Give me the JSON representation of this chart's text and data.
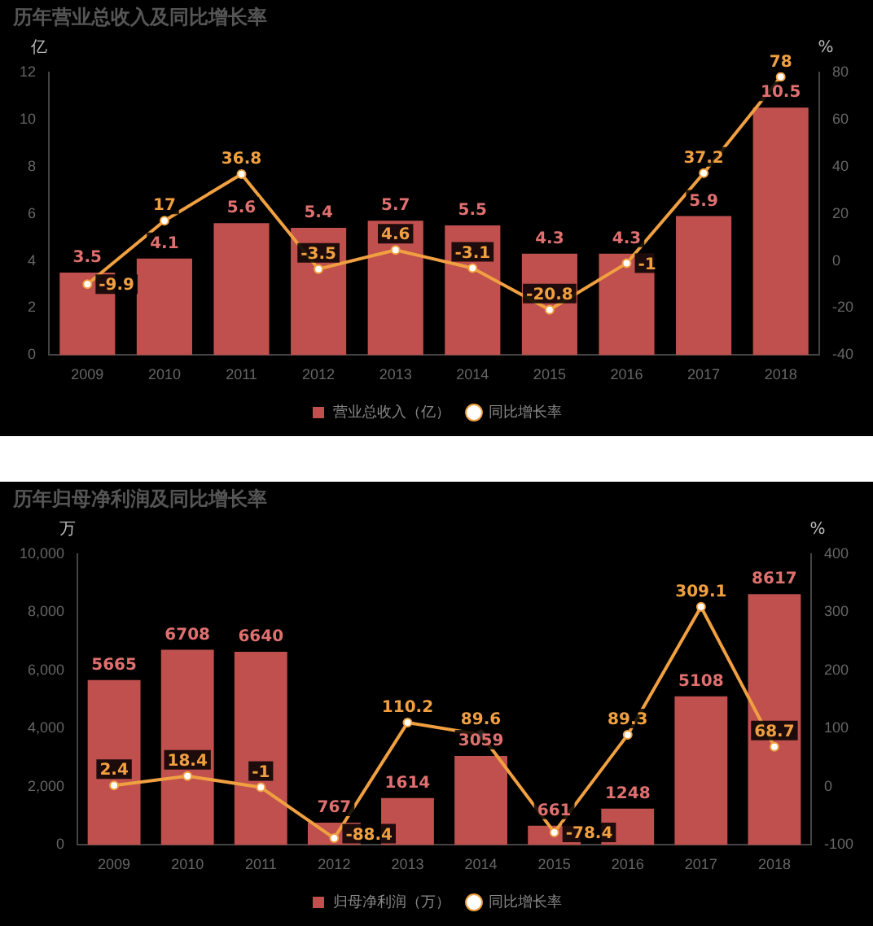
{
  "chart_data": [
    {
      "type": "bar",
      "title": "历年营业总收入及同比增长率",
      "ylabel": "亿",
      "y2label": "%",
      "categories": [
        "2009",
        "2010",
        "2011",
        "2012",
        "2013",
        "2014",
        "2015",
        "2016",
        "2017",
        "2018"
      ],
      "series": [
        {
          "name": "营业总收入（亿）",
          "color": "#c0504d",
          "values": [
            3.5,
            4.1,
            5.6,
            5.4,
            5.7,
            5.5,
            4.3,
            4.3,
            5.9,
            10.5
          ]
        },
        {
          "name": "同比增长率",
          "type": "line",
          "axis": "y2",
          "color": "#f0a040",
          "values": [
            -9.9,
            17,
            36.8,
            -3.5,
            4.6,
            -3.1,
            -20.8,
            -1,
            37.2,
            78
          ]
        }
      ],
      "ylim": [
        0,
        12
      ],
      "yticks": [
        0,
        2,
        4,
        6,
        8,
        10,
        12
      ],
      "y2lim": [
        -40,
        80
      ],
      "y2ticks": [
        -40,
        -20,
        0,
        20,
        40,
        60,
        80
      ],
      "legend": "bottom",
      "data_labels": true,
      "marker": "circle",
      "grid": false
    },
    {
      "type": "bar",
      "title": "历年归母净利润及同比增长率",
      "ylabel": "万",
      "y2label": "%",
      "categories": [
        "2009",
        "2010",
        "2011",
        "2012",
        "2013",
        "2014",
        "2015",
        "2016",
        "2017",
        "2018"
      ],
      "series": [
        {
          "name": "归母净利润（万）",
          "color": "#c0504d",
          "values": [
            5665,
            6708,
            6640,
            767,
            1614,
            3059,
            661,
            1248,
            5108,
            8617
          ]
        },
        {
          "name": "同比增长率",
          "type": "line",
          "axis": "y2",
          "color": "#f0a040",
          "values": [
            2.4,
            18.4,
            -1,
            -88.4,
            110.2,
            89.6,
            -78.4,
            89.3,
            309.1,
            68.7
          ]
        }
      ],
      "ylim": [
        0,
        10000
      ],
      "yticks": [
        0,
        {
          "value": 2000,
          "label": "2,000"
        },
        {
          "value": 4000,
          "label": "4,000"
        },
        {
          "value": 6000,
          "label": "6,000"
        },
        {
          "value": 8000,
          "label": "8,000"
        },
        {
          "value": 10000,
          "label": "10,000"
        }
      ],
      "y2lim": [
        -100,
        400
      ],
      "y2ticks": [
        -100,
        0,
        100,
        200,
        300,
        400
      ],
      "legend": "bottom",
      "data_labels": true,
      "marker": "circle",
      "grid": false
    }
  ]
}
